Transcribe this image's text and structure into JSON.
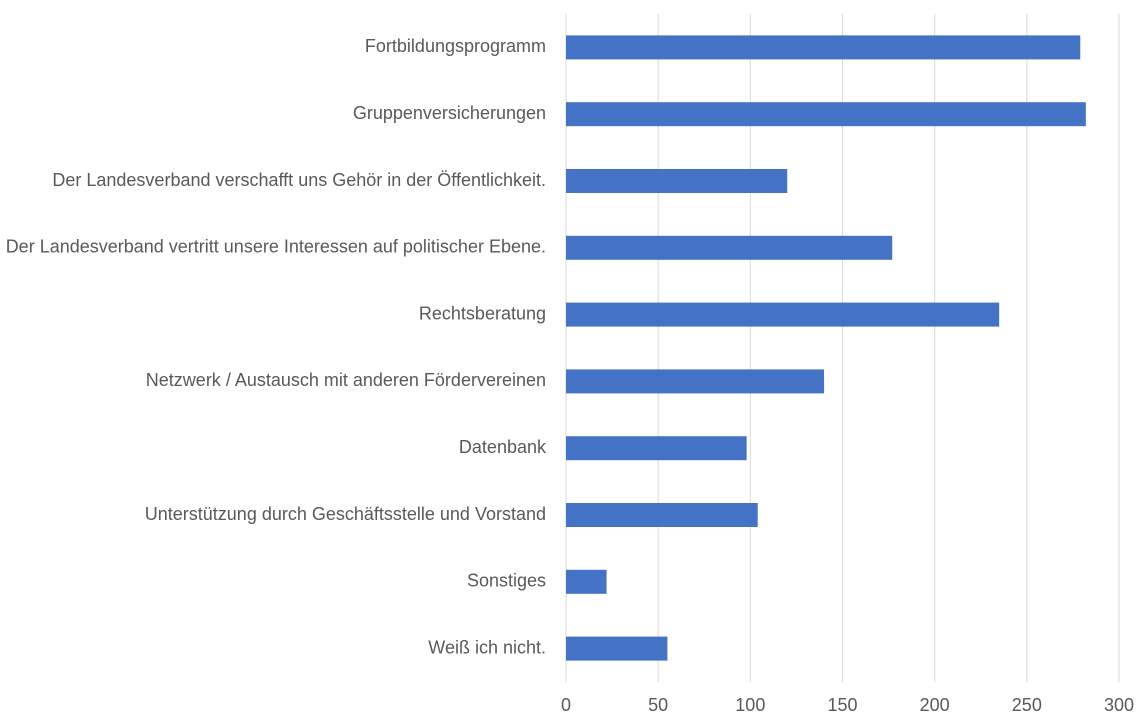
{
  "chart_data": {
    "type": "barh",
    "categories": [
      "Fortbildungsprogramm",
      "Gruppenversicherungen",
      "Der Landesverband verschafft uns Gehör in der Öffentlichkeit.",
      "Der Landesverband vertritt unsere Interessen auf politischer Ebene.",
      "Rechtsberatung",
      "Netzwerk / Austausch mit anderen Fördervereinen",
      "Datenbank",
      "Unterstützung durch Geschäftsstelle und Vorstand",
      "Sonstiges",
      "Weiß ich nicht."
    ],
    "values": [
      279,
      282,
      120,
      177,
      235,
      140,
      98,
      104,
      22,
      55
    ],
    "color": "#4472c4",
    "xlim": [
      0,
      300
    ],
    "xticks": [
      0,
      50,
      100,
      150,
      200,
      250,
      300
    ],
    "grid": true
  }
}
